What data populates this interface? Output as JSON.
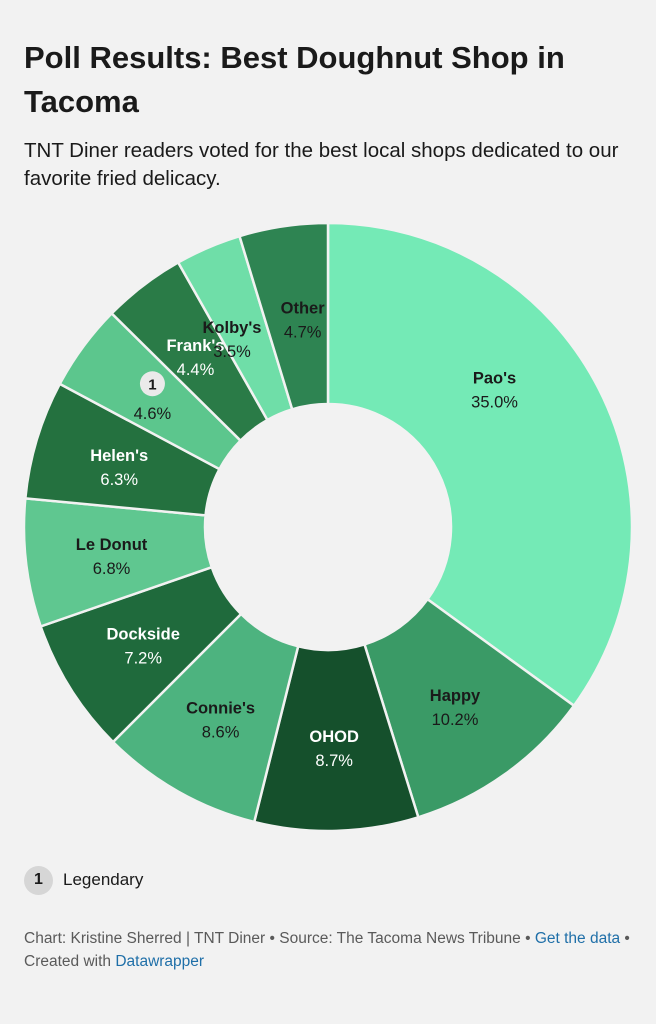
{
  "title": "Poll Results: Best Doughnut Shop in Tacoma",
  "subtitle": "TNT Diner readers voted for the best local shops dedicated to our favorite fried delicacy.",
  "chart_data": {
    "type": "pie",
    "style": "donut",
    "slices": [
      {
        "label": "Pao's",
        "value": 35.0,
        "value_label": "35.0%",
        "color": "#74eab6",
        "text_color": "#1a1a1a"
      },
      {
        "label": "Happy",
        "value": 10.2,
        "value_label": "10.2%",
        "color": "#3a9a66",
        "text_color": "#1a1a1a"
      },
      {
        "label": "OHOD",
        "value": 8.7,
        "value_label": "8.7%",
        "color": "#15502c",
        "text_color": "#ffffff"
      },
      {
        "label": "Connie's",
        "value": 8.6,
        "value_label": "8.6%",
        "color": "#4db37f",
        "text_color": "#1a1a1a"
      },
      {
        "label": "Dockside",
        "value": 7.2,
        "value_label": "7.2%",
        "color": "#1f6a3c",
        "text_color": "#ffffff"
      },
      {
        "label": "Le Donut",
        "value": 6.8,
        "value_label": "6.8%",
        "color": "#5fc790",
        "text_color": "#1a1a1a"
      },
      {
        "label": "Helen's",
        "value": 6.3,
        "value_label": "6.3%",
        "color": "#24713f",
        "text_color": "#ffffff"
      },
      {
        "label": "1",
        "value": 4.6,
        "value_label": "4.6%",
        "color": "#5cc68d",
        "text_color": "#1a1a1a",
        "badge": true
      },
      {
        "label": "Frank's",
        "value": 4.4,
        "value_label": "4.4%",
        "color": "#2a7b47",
        "text_color": "#ffffff"
      },
      {
        "label": "Kolby's",
        "value": 3.5,
        "value_label": "3.5%",
        "color": "#6fdea8",
        "text_color": "#1a1a1a"
      },
      {
        "label": "Other",
        "value": 4.7,
        "value_label": "4.7%",
        "color": "#2e8452",
        "text_color": "#1a1a1a"
      }
    ]
  },
  "legend": {
    "badge": "1",
    "text": "Legendary"
  },
  "footer": {
    "prefix": "Chart: Kristine Sherred | TNT Diner • Source: The Tacoma News Tribune • ",
    "get_data": "Get the data",
    "middle": " • Created with ",
    "datawrapper": "Datawrapper"
  }
}
